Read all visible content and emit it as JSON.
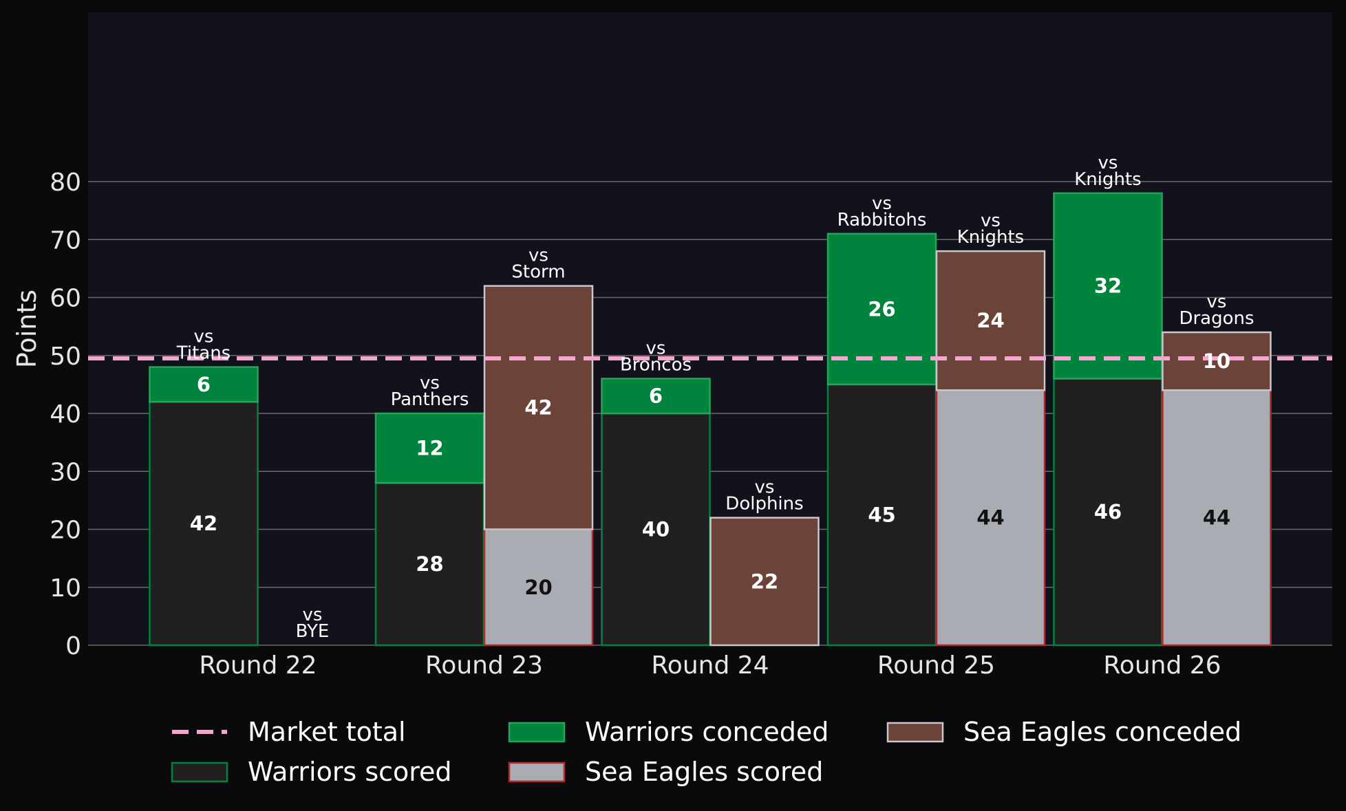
{
  "chart_data": {
    "type": "bar",
    "categories": [
      "Round 22",
      "Round 23",
      "Round 24",
      "Round 25",
      "Round 26"
    ],
    "ylabel": "Points",
    "xlabel": "",
    "ylim": [
      0,
      87
    ],
    "yticks": [
      0,
      10,
      20,
      30,
      40,
      50,
      60,
      70,
      80
    ],
    "grid": true,
    "market_total": 49.5,
    "teams": [
      {
        "scored_name": "Warriors scored",
        "conceded_name": "Warriors conceded",
        "scored": [
          42,
          28,
          40,
          45,
          46
        ],
        "conceded": [
          6,
          12,
          6,
          26,
          32
        ],
        "opponents": [
          "vs\nTitans",
          "vs\nPanthers",
          "vs\nBroncos",
          "vs\nRabbitohs",
          "vs\nKnights"
        ],
        "scored_color": "#221f20",
        "scored_edge": "#00843d",
        "conceded_color": "#00843d",
        "conceded_edge": "#2aa35a",
        "scored_text_color": "#ffffff",
        "conceded_text_color": "#ffffff"
      },
      {
        "scored_name": "Sea Eagles scored",
        "conceded_name": "Sea Eagles conceded",
        "scored": [
          null,
          20,
          0,
          44,
          44
        ],
        "conceded": [
          null,
          42,
          22,
          24,
          10
        ],
        "opponents": [
          "vs\nBYE",
          "vs\nStorm",
          "vs\nDolphins",
          "vs\nKnights",
          "vs\nDragons"
        ],
        "scored_color": "#a9acb3",
        "scored_edge": "#b22a2a",
        "conceded_color": "#6b4339",
        "conceded_edge": "#c9c9cc",
        "scored_text_color": "#111111",
        "conceded_text_color": "#ffffff"
      }
    ],
    "legend": {
      "placement": "bottom",
      "items": [
        {
          "key": "market",
          "label": "Market total"
        },
        {
          "key": "warriors-scored",
          "label": "Warriors scored"
        },
        {
          "key": "warriors-conceded",
          "label": "Warriors conceded"
        },
        {
          "key": "seaeagles-scored",
          "label": "Sea Eagles scored"
        },
        {
          "key": "seaeagles-conceded",
          "label": "Sea Eagles conceded"
        }
      ]
    },
    "colors": {
      "background": "#0a0a0d",
      "plot_background": "#11121b",
      "grid": "#6a6a6a",
      "market_line": "#f4a6cf"
    }
  }
}
